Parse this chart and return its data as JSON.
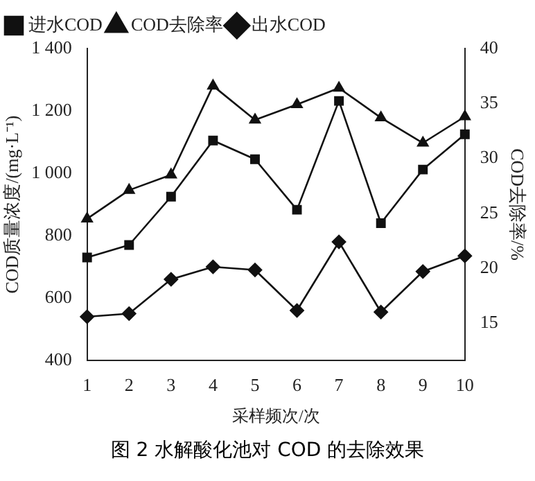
{
  "chart_data": {
    "type": "line",
    "xlabel": "采样频次/次",
    "ylabel": "COD质量浓度/(mg·L⁻¹)",
    "y2label": "COD去除率/%",
    "categories": [
      "1",
      "2",
      "3",
      "4",
      "5",
      "6",
      "7",
      "8",
      "9",
      "10"
    ],
    "series": [
      {
        "name": "进水COD",
        "color": "#111111",
        "marker": "square",
        "values": [
          730,
          770,
          925,
          1105,
          1045,
          883,
          1232,
          840,
          1012,
          1125
        ]
      },
      {
        "name": "COD去除率",
        "color": "#111111",
        "marker": "triangle",
        "axis": "y2",
        "values": [
          24.5,
          27.1,
          28.5,
          36.6,
          33.5,
          34.9,
          36.4,
          33.7,
          31.4,
          33.8
        ]
      },
      {
        "name": "出水COD",
        "color": "#111111",
        "marker": "diamond",
        "values": [
          540,
          550,
          660,
          700,
          690,
          560,
          780,
          555,
          685,
          735
        ]
      }
    ],
    "ylim": [
      400,
      1400
    ],
    "yticks": [
      400,
      600,
      800,
      {
        "value": 1000,
        "label": "1 000"
      },
      {
        "value": 1200,
        "label": "1 200"
      },
      {
        "value": 1400,
        "label": "1 400"
      }
    ],
    "y2lim": [
      11.6,
      40
    ],
    "y2ticks": [
      15,
      20,
      25,
      30,
      35,
      40
    ],
    "legend": "top left",
    "grid": false,
    "line_style": "solid",
    "annotations": [
      "图 2  水解酸化池对 COD 的去除效果"
    ]
  }
}
